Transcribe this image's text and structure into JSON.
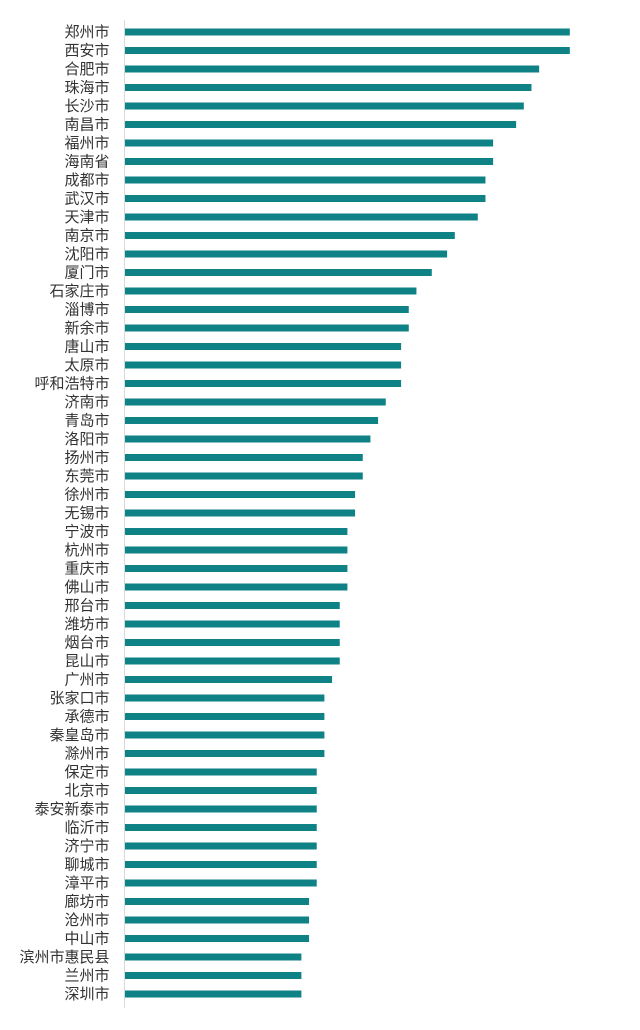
{
  "chart_data": {
    "type": "bar",
    "orientation": "horizontal",
    "categories": [
      "郑州市",
      "西安市",
      "合肥市",
      "珠海市",
      "长沙市",
      "南昌市",
      "福州市",
      "海南省",
      "成都市",
      "武汉市",
      "天津市",
      "南京市",
      "沈阳市",
      "厦门市",
      "石家庄市",
      "淄博市",
      "新余市",
      "唐山市",
      "太原市",
      "呼和浩特市",
      "济南市",
      "青岛市",
      "洛阳市",
      "扬州市",
      "东莞市",
      "徐州市",
      "无锡市",
      "宁波市",
      "杭州市",
      "重庆市",
      "佛山市",
      "邢台市",
      "潍坊市",
      "烟台市",
      "昆山市",
      "广州市",
      "张家口市",
      "承德市",
      "秦皇岛市",
      "滁州市",
      "保定市",
      "北京市",
      "泰安新泰市",
      "临沂市",
      "济宁市",
      "聊城市",
      "漳平市",
      "廊坊市",
      "沧州市",
      "中山市",
      "滨州市惠民县",
      "兰州市",
      "深圳市"
    ],
    "values": [
      58,
      58,
      54,
      53,
      52,
      51,
      48,
      48,
      47,
      47,
      46,
      43,
      42,
      40,
      38,
      37,
      37,
      36,
      36,
      36,
      34,
      33,
      32,
      31,
      31,
      30,
      30,
      29,
      29,
      29,
      29,
      28,
      28,
      28,
      28,
      27,
      26,
      26,
      26,
      26,
      25,
      25,
      25,
      25,
      25,
      25,
      25,
      24,
      24,
      24,
      23,
      23,
      23
    ],
    "xlim": [
      0,
      62
    ],
    "grid": false,
    "legend": "none",
    "bar_color": "#0e8284"
  }
}
